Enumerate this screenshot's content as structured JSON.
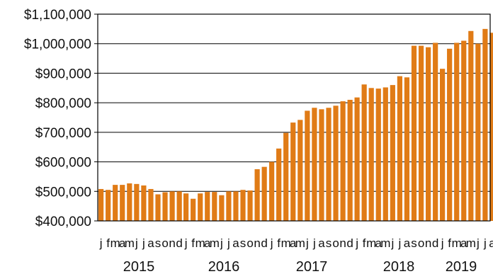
{
  "chart_data": {
    "type": "bar",
    "title": "",
    "xlabel": "",
    "ylabel": "",
    "ylim": [
      400000,
      1100000
    ],
    "grid": "horizontal",
    "bar_color": "#E07B16",
    "y_ticks": [
      "$400,000",
      "$500,000",
      "$600,000",
      "$700,000",
      "$800,000",
      "$900,000",
      "$1,000,000",
      "$1,100,000"
    ],
    "y_tick_values": [
      400000,
      500000,
      600000,
      700000,
      800000,
      900000,
      1000000,
      1100000
    ],
    "groups": [
      {
        "year": "2015",
        "month_labels": [
          "j",
          "f",
          "m",
          "a",
          "m",
          "j",
          "j",
          "a",
          "s",
          "o",
          "n",
          "d"
        ],
        "values": [
          508000,
          505000,
          522000,
          522000,
          527000,
          525000,
          520000,
          508000,
          490000,
          497000,
          500000,
          500000
        ]
      },
      {
        "year": "2016",
        "month_labels": [
          "j",
          "f",
          "m",
          "a",
          "m",
          "j",
          "j",
          "a",
          "s",
          "o",
          "n",
          "d"
        ],
        "values": [
          493000,
          475000,
          493000,
          498000,
          498000,
          487000,
          500000,
          500000,
          505000,
          503000,
          575000,
          583000
        ]
      },
      {
        "year": "2017",
        "month_labels": [
          "j",
          "f",
          "m",
          "a",
          "m",
          "j",
          "j",
          "a",
          "s",
          "o",
          "n",
          "d"
        ],
        "values": [
          600000,
          645000,
          698000,
          733000,
          742000,
          773000,
          783000,
          778000,
          783000,
          790000,
          805000,
          810000
        ]
      },
      {
        "year": "2018",
        "month_labels": [
          "j",
          "f",
          "m",
          "a",
          "m",
          "j",
          "j",
          "a",
          "s",
          "o",
          "n",
          "d"
        ],
        "values": [
          818000,
          862000,
          850000,
          848000,
          852000,
          860000,
          890000,
          886000,
          993000,
          993000,
          988000,
          1003000
        ]
      },
      {
        "year": "2019",
        "month_labels": [
          "j",
          "f",
          "m",
          "a",
          "m",
          "j",
          "j",
          "a"
        ],
        "values": [
          915000,
          983000,
          1003000,
          1010000,
          1043000,
          1000000,
          1050000,
          1037000
        ]
      }
    ]
  }
}
